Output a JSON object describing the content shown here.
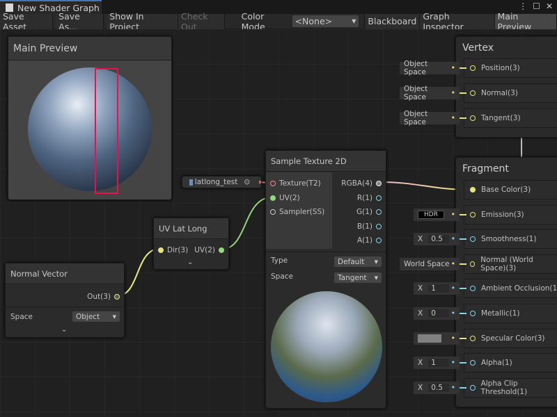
{
  "window": {
    "title": "New Shader Graph",
    "icons": [
      "more-icon",
      "maximize-icon",
      "close-icon"
    ]
  },
  "toolbar": {
    "save_asset": "Save Asset",
    "save_as": "Save As...",
    "show_in_project": "Show In Project",
    "check_out": "Check Out",
    "color_mode_label": "Color Mode",
    "color_mode_value": "<None>",
    "blackboard": "Blackboard",
    "graph_inspector": "Graph Inspector",
    "main_preview": "Main Preview"
  },
  "main_preview": {
    "title": "Main Preview"
  },
  "property_node": {
    "label": "latlong_test"
  },
  "sample_texture": {
    "title": "Sample Texture 2D",
    "inputs": [
      "Texture(T2)",
      "UV(2)",
      "Sampler(SS)"
    ],
    "outputs": [
      "RGBA(4)",
      "R(1)",
      "G(1)",
      "B(1)",
      "A(1)"
    ],
    "type_label": "Type",
    "type_value": "Default",
    "space_label": "Space",
    "space_value": "Tangent"
  },
  "uv_lat_long": {
    "title": "UV Lat Long",
    "input": "Dir(3)",
    "output": "UV(2)"
  },
  "normal_vector": {
    "title": "Normal Vector",
    "output": "Out(3)",
    "space_label": "Space",
    "space_value": "Object"
  },
  "vertex": {
    "title": "Vertex",
    "ports": [
      {
        "label": "Position(3)",
        "input": "Object Space"
      },
      {
        "label": "Normal(3)",
        "input": "Object Space"
      },
      {
        "label": "Tangent(3)",
        "input": "Object Space"
      }
    ]
  },
  "fragment": {
    "title": "Fragment",
    "ports": [
      {
        "label": "Base Color(3)",
        "input": ""
      },
      {
        "label": "Emission(3)",
        "input": "HDR"
      },
      {
        "label": "Smoothness(1)",
        "axis": "X",
        "input": "0.5"
      },
      {
        "label": "Normal (World Space)(3)",
        "input": "World Space"
      },
      {
        "label": "Ambient Occlusion(1)",
        "axis": "X",
        "input": "1"
      },
      {
        "label": "Metallic(1)",
        "axis": "X",
        "input": "0"
      },
      {
        "label": "Specular Color(3)",
        "input": "",
        "swatch": "#808080"
      },
      {
        "label": "Alpha(1)",
        "axis": "X",
        "input": "1"
      },
      {
        "label": "Alpha Clip Threshold(1)",
        "axis": "X",
        "input": "0.5"
      }
    ]
  },
  "colors": {
    "accent": "#3a79bb",
    "vec3": "#e6e67a",
    "vec1": "#84d7ea",
    "vec2": "#93d87d",
    "texture": "#ff8b8b",
    "highlight": "#e8114f"
  }
}
